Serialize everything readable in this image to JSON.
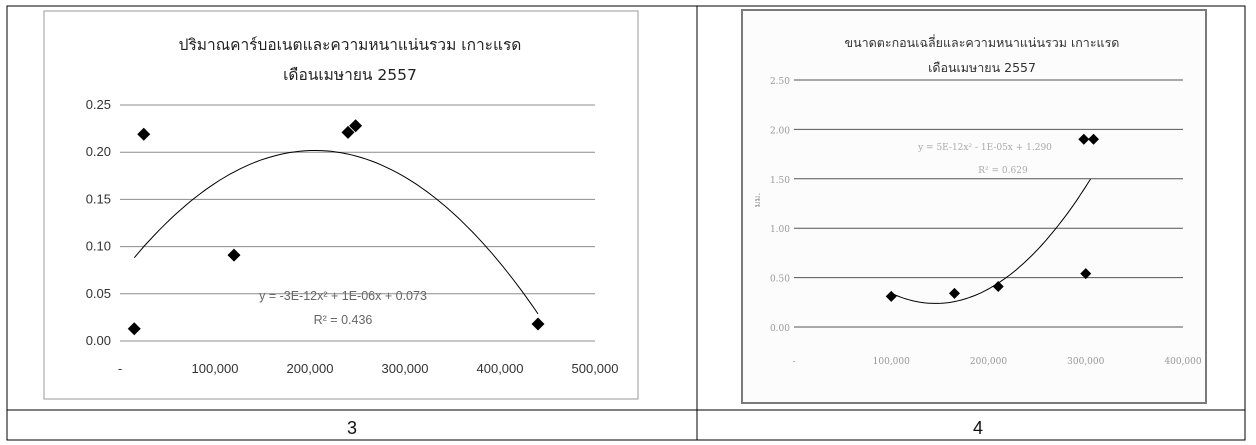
{
  "captions": [
    "3",
    "4"
  ],
  "chart_data": [
    {
      "type": "scatter",
      "title": "ปริมาณคาร์บอเนตและความหนาแน่นรวม เกาะแรด",
      "subtitle": "เดือนเมษายน 2557",
      "xlabel": "",
      "ylabel": "",
      "xlim": [
        0,
        500000
      ],
      "ylim": [
        0,
        0.25
      ],
      "x_ticks": [
        "-",
        "100,000",
        "200,000",
        "300,000",
        "400,000",
        "500,000"
      ],
      "y_ticks": [
        "0.00",
        "0.05",
        "0.10",
        "0.15",
        "0.20",
        "0.25"
      ],
      "grid": true,
      "series": [
        {
          "marker": "diamond",
          "points": [
            {
              "x": 15000,
              "y": 0.013
            },
            {
              "x": 25000,
              "y": 0.219
            },
            {
              "x": 120000,
              "y": 0.091
            },
            {
              "x": 240000,
              "y": 0.221
            },
            {
              "x": 248000,
              "y": 0.228
            },
            {
              "x": 440000,
              "y": 0.018
            }
          ]
        }
      ],
      "trendline": {
        "type": "polynomial",
        "x_from": 15000,
        "x_to": 440000
      },
      "equation": "y = -3E-12x² + 1E-06x + 0.073",
      "r_squared": "R² = 0.436"
    },
    {
      "type": "scatter",
      "title": "ขนาดตะกอนเฉลี่ยและความหนาแน่นรวม เกาะแรด",
      "subtitle": "เดือนเมษายน 2557",
      "xlabel": "",
      "ylabel": "มม.",
      "xlim": [
        0,
        400000
      ],
      "ylim": [
        0,
        2.5
      ],
      "x_ticks": [
        "-",
        "100,000",
        "200,000",
        "300,000",
        "400,000"
      ],
      "y_ticks": [
        "0.00",
        "0.50",
        "1.00",
        "1.50",
        "2.00",
        "2.50"
      ],
      "grid": true,
      "series": [
        {
          "marker": "diamond",
          "points": [
            {
              "x": 100000,
              "y": 0.31
            },
            {
              "x": 165000,
              "y": 0.34
            },
            {
              "x": 210000,
              "y": 0.41
            },
            {
              "x": 300000,
              "y": 0.54
            },
            {
              "x": 298000,
              "y": 1.9
            },
            {
              "x": 308000,
              "y": 1.9
            }
          ]
        }
      ],
      "trendline": {
        "type": "polynomial",
        "x_from": 100000,
        "x_to": 305000
      },
      "equation": "y = 5E-12x² - 1E-05x + 1.290",
      "r_squared": "R² = 0.629"
    }
  ]
}
